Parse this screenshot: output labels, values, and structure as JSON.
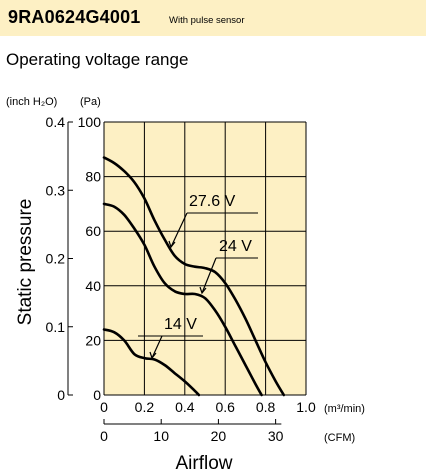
{
  "header": {
    "model": "9RA0624G4001",
    "subtitle": "With pulse sensor",
    "background": "#fdf0c4"
  },
  "section_title": "Operating voltage range",
  "chart_data": {
    "type": "line",
    "plot_background": "#fdf0c4",
    "grid": true,
    "ylabel": "Static pressure",
    "xlabel": "Airflow",
    "y_units_left": "(inch H₂O)",
    "y_units_right": "(Pa)",
    "x_units_top": "(m³/min)",
    "x_units_bottom": "(CFM)",
    "xlim": [
      0,
      1.0
    ],
    "ylim": [
      0,
      100
    ],
    "x_ticks": [
      "0",
      "0.2",
      "0.4",
      "0.6",
      "0.8",
      "1.0"
    ],
    "y_ticks_pa": [
      "0",
      "20",
      "40",
      "60",
      "80",
      "100"
    ],
    "y_ticks_inch": [
      "0",
      "0.1",
      "0.2",
      "0.3",
      "0.4"
    ],
    "cfm_ticks": [
      "0",
      "10",
      "20",
      "30"
    ],
    "series": [
      {
        "name": "27.6 V",
        "x": [
          0,
          0.05,
          0.1,
          0.15,
          0.2,
          0.25,
          0.3,
          0.35,
          0.4,
          0.45,
          0.5,
          0.55,
          0.6,
          0.65,
          0.7,
          0.75,
          0.8,
          0.85,
          0.89
        ],
        "y": [
          87,
          85,
          82,
          78,
          72,
          64,
          57,
          51,
          48,
          47,
          46.5,
          45,
          41,
          35,
          28,
          20,
          12,
          5,
          0
        ]
      },
      {
        "name": "24 V",
        "x": [
          0,
          0.05,
          0.1,
          0.15,
          0.2,
          0.25,
          0.3,
          0.35,
          0.4,
          0.45,
          0.5,
          0.55,
          0.6,
          0.65,
          0.7,
          0.75,
          0.78
        ],
        "y": [
          70,
          69,
          66,
          61,
          55,
          47,
          41,
          38,
          37,
          37,
          35.5,
          31,
          25,
          18,
          11,
          4,
          0
        ]
      },
      {
        "name": "14 V",
        "x": [
          0,
          0.05,
          0.1,
          0.15,
          0.2,
          0.25,
          0.3,
          0.35,
          0.4,
          0.45,
          0.47
        ],
        "y": [
          24,
          23,
          20,
          15,
          13.5,
          13,
          11,
          8,
          5,
          1.5,
          0
        ]
      }
    ],
    "annotations": [
      {
        "text": "27.6 V"
      },
      {
        "text": "24 V"
      },
      {
        "text": "14 V"
      }
    ]
  }
}
